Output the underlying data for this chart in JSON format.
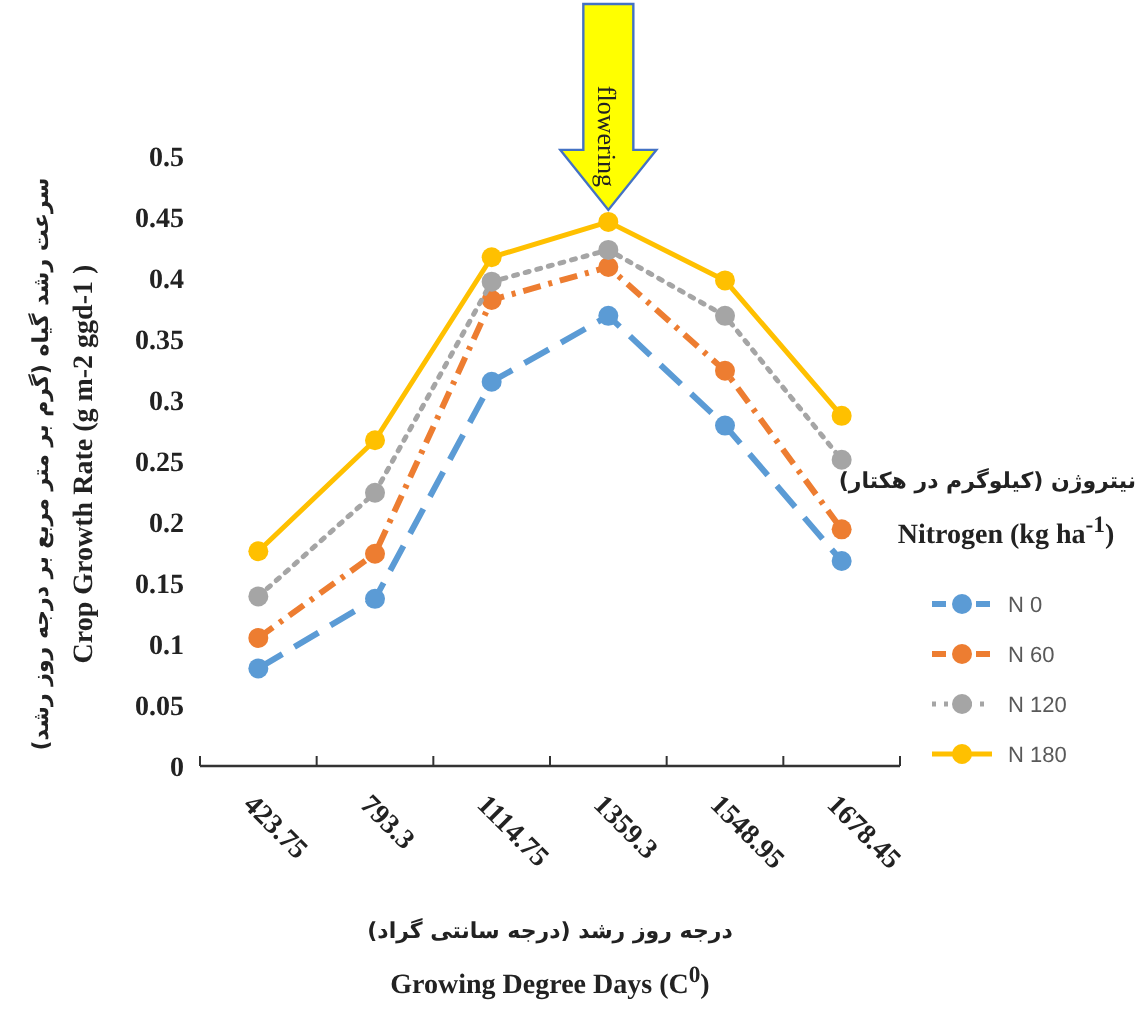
{
  "chart_data": {
    "type": "line",
    "ylabel": "سرعت رشد گیاه (گرم بر متر مربع بر درجه روز رشد)\nCrop Growth Rate (g m-2 ggd-1 )",
    "xlabel": "درجه روز رشد (درجه سانتی گراد)\nGrowing Degree Days (C$^{0}$)",
    "legend_title": "نیتروژن (کیلوگرم در هکتار)\nNitrogen (kg ha$^{-1}$)",
    "categories": [
      "423.75",
      "793.3",
      "1114.75",
      "1359.3",
      "1548.95",
      "1678.45"
    ],
    "series": [
      {
        "name": "N 0",
        "color": "#5b9bd5",
        "line_style": "dashed",
        "values": [
          0.08,
          0.137,
          0.315,
          0.369,
          0.279,
          0.168
        ]
      },
      {
        "name": "N 60",
        "color": "#ed7d31",
        "line_style": "dashdot",
        "values": [
          0.105,
          0.174,
          0.382,
          0.409,
          0.324,
          0.194
        ]
      },
      {
        "name": "N 120",
        "color": "#a5a5a5",
        "line_style": "dotted",
        "values": [
          0.139,
          0.224,
          0.397,
          0.423,
          0.369,
          0.251
        ]
      },
      {
        "name": "N 180",
        "color": "#ffc000",
        "line_style": "solid",
        "values": [
          0.176,
          0.267,
          0.417,
          0.446,
          0.398,
          0.287
        ]
      }
    ],
    "ylim": [
      0,
      0.5
    ],
    "yticks": [
      0,
      0.05,
      0.1,
      0.15,
      0.2,
      0.25,
      0.3,
      0.35,
      0.4,
      0.45,
      0.5
    ],
    "marker": "circle",
    "legend": "right",
    "grid": false,
    "annotations": [
      {
        "text": "flowering",
        "x": "1359.3",
        "y": 0.446
      }
    ]
  }
}
